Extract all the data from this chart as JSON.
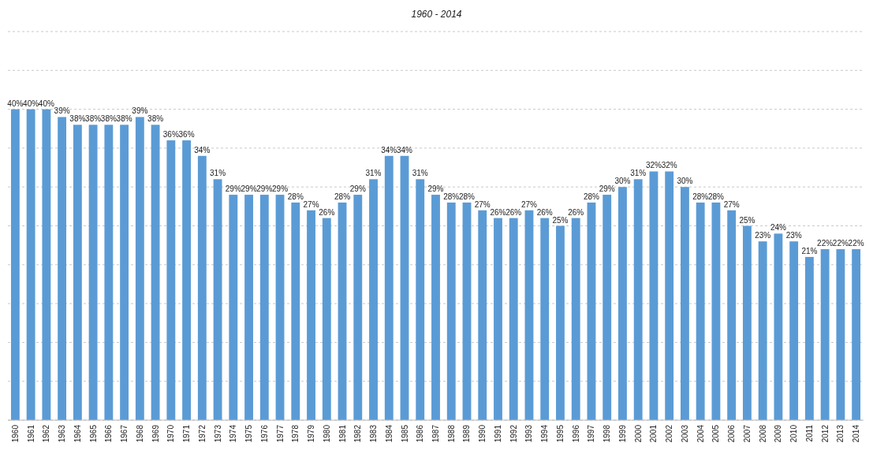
{
  "chart_data": {
    "type": "bar",
    "title": "1960 - 2014",
    "categories": [
      "1960",
      "1961",
      "1962",
      "1963",
      "1964",
      "1965",
      "1966",
      "1967",
      "1968",
      "1969",
      "1970",
      "1971",
      "1972",
      "1973",
      "1974",
      "1975",
      "1976",
      "1977",
      "1978",
      "1979",
      "1980",
      "1981",
      "1982",
      "1983",
      "1984",
      "1985",
      "1986",
      "1987",
      "1988",
      "1989",
      "1990",
      "1991",
      "1992",
      "1993",
      "1994",
      "1995",
      "1996",
      "1997",
      "1998",
      "1999",
      "2000",
      "2001",
      "2002",
      "2003",
      "2004",
      "2005",
      "2006",
      "2007",
      "2008",
      "2009",
      "2010",
      "2011",
      "2012",
      "2013",
      "2014"
    ],
    "values": [
      40,
      40,
      40,
      39,
      38,
      38,
      38,
      38,
      39,
      38,
      36,
      36,
      34,
      31,
      29,
      29,
      29,
      29,
      28,
      27,
      26,
      28,
      29,
      31,
      34,
      34,
      31,
      29,
      28,
      28,
      27,
      26,
      26,
      27,
      26,
      25,
      26,
      28,
      29,
      30,
      31,
      32,
      32,
      30,
      28,
      28,
      27,
      25,
      23,
      24,
      23,
      21,
      22,
      22,
      22
    ],
    "value_labels": [
      "40%",
      "40%",
      "40%",
      "39%",
      "38%",
      "38%",
      "38%",
      "38%",
      "39%",
      "38%",
      "36%",
      "36%",
      "34%",
      "31%",
      "29%",
      "29%",
      "29%",
      "29%",
      "28%",
      "27%",
      "26%",
      "28%",
      "29%",
      "31%",
      "34%",
      "34%",
      "31%",
      "29%",
      "28%",
      "28%",
      "27%",
      "26%",
      "26%",
      "27%",
      "26%",
      "25%",
      "26%",
      "28%",
      "29%",
      "30%",
      "31%",
      "32%",
      "32%",
      "30%",
      "28%",
      "28%",
      "27%",
      "25%",
      "23%",
      "24%",
      "23%",
      "21%",
      "22%",
      "22%",
      "22%"
    ],
    "color": "#5b9bd5",
    "ylim": [
      0,
      50
    ],
    "yticks": [
      {
        "value": 0,
        "label": null
      },
      {
        "value": 5,
        "label": null
      },
      {
        "value": 10,
        "label": null
      },
      {
        "value": 15,
        "label": null
      },
      {
        "value": 20,
        "label": null
      },
      {
        "value": 25,
        "label": null
      },
      {
        "value": 30,
        "label": null
      },
      {
        "value": 35,
        "label": null
      },
      {
        "value": 40,
        "label": null
      },
      {
        "value": 45,
        "label": null
      },
      {
        "value": 50,
        "label": null
      }
    ],
    "grid": "y",
    "tick_labels": "x"
  }
}
